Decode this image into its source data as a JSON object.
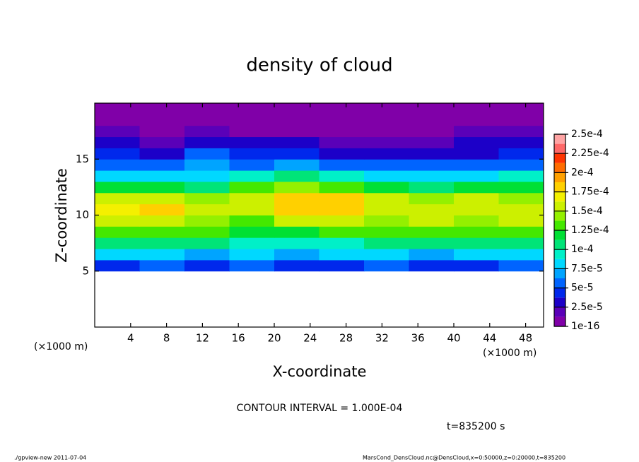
{
  "chart_data": {
    "type": "heatmap",
    "title": "density of cloud",
    "xlabel": "X-coordinate",
    "ylabel": "Z-coordinate",
    "x_unit": "(×1000 m)",
    "contour_interval": "CONTOUR INTERVAL = 1.000E-04",
    "time": "t=835200 s",
    "footer_left": "./gpview-new   2011-07-04",
    "footer_right": "MarsCond_DensCloud.nc@DensCloud,x=0:50000,z=0:20000,t=835200",
    "xlim": [
      0,
      50
    ],
    "ylim": [
      0,
      20
    ],
    "xticks": [
      4,
      8,
      12,
      16,
      20,
      24,
      28,
      32,
      36,
      40,
      44,
      48
    ],
    "yticks": [
      5,
      10,
      15
    ],
    "x": [
      2.5,
      7.5,
      12.5,
      17.5,
      22.5,
      27.5,
      32.5,
      37.5,
      42.5,
      47.5
    ],
    "z": [
      5.5,
      6.5,
      7.5,
      8.5,
      9.5,
      10.5,
      11.5,
      12.5,
      13.5,
      14.5,
      15.5,
      16.5,
      17.5,
      18.5,
      19.5
    ],
    "values": [
      [
        4e-05,
        5e-05,
        4.5e-05,
        5e-05,
        4e-05,
        4.5e-05,
        5e-05,
        4.5e-05,
        4e-05,
        5e-05
      ],
      [
        7.5e-05,
        8e-05,
        7e-05,
        7.5e-05,
        7e-05,
        7.5e-05,
        8e-05,
        7e-05,
        7.5e-05,
        8e-05
      ],
      [
        0.000105,
        0.00011,
        0.0001,
        9.5e-05,
        9e-05,
        9.5e-05,
        0.0001,
        0.000105,
        0.0001,
        0.000105
      ],
      [
        0.000135,
        0.00013,
        0.000125,
        0.000115,
        0.00012,
        0.000125,
        0.00013,
        0.000135,
        0.00013,
        0.000135
      ],
      [
        0.000155,
        0.00015,
        0.00014,
        0.000135,
        0.00015,
        0.000155,
        0.000145,
        0.00015,
        0.000145,
        0.00015
      ],
      [
        0.00017,
        0.000175,
        0.000155,
        0.00015,
        0.000175,
        0.000175,
        0.00016,
        0.000155,
        0.00016,
        0.000155
      ],
      [
        0.000155,
        0.00015,
        0.00014,
        0.000155,
        0.00018,
        0.000175,
        0.00015,
        0.000145,
        0.00015,
        0.000145
      ],
      [
        0.00012,
        0.000115,
        0.00011,
        0.000125,
        0.00014,
        0.000135,
        0.00012,
        0.00011,
        0.000115,
        0.00012
      ],
      [
        8.5e-05,
        8e-05,
        8e-05,
        9e-05,
        0.0001,
        9.5e-05,
        8.5e-05,
        8e-05,
        8.5e-05,
        9e-05
      ],
      [
        6e-05,
        5.5e-05,
        6.5e-05,
        6e-05,
        7e-05,
        6e-05,
        5e-05,
        5e-05,
        5.5e-05,
        6e-05
      ],
      [
        4e-05,
        3.5e-05,
        5e-05,
        4.5e-05,
        4e-05,
        3.5e-05,
        3e-05,
        3e-05,
        3.5e-05,
        4e-05
      ],
      [
        2.5e-05,
        2e-05,
        3e-05,
        2.5e-05,
        2.5e-05,
        2e-05,
        2e-05,
        2e-05,
        2.5e-05,
        2.5e-05
      ],
      [
        1.5e-05,
        1e-05,
        1.5e-05,
        1e-05,
        1e-05,
        1e-05,
        1e-05,
        1e-05,
        1.5e-05,
        1.5e-05
      ],
      [
        5e-06,
        5e-06,
        5e-06,
        5e-06,
        5e-06,
        5e-06,
        5e-06,
        5e-06,
        5e-06,
        5e-06
      ],
      [
        1e-05,
        1e-05,
        1e-05,
        1e-05,
        1e-05,
        1e-05,
        1e-05,
        1e-05,
        1e-05,
        1e-05
      ]
    ],
    "colorbar_ticks": [
      {
        "value": 1e-16,
        "label": "1e-16"
      },
      {
        "value": 2.5e-05,
        "label": "2.5e-5"
      },
      {
        "value": 5e-05,
        "label": "5e-5"
      },
      {
        "value": 7.5e-05,
        "label": "7.5e-5"
      },
      {
        "value": 0.0001,
        "label": "1e-4"
      },
      {
        "value": 0.000125,
        "label": "1.25e-4"
      },
      {
        "value": 0.00015,
        "label": "1.5e-4"
      },
      {
        "value": 0.000175,
        "label": "1.75e-4"
      },
      {
        "value": 0.0002,
        "label": "2e-4"
      },
      {
        "value": 0.000225,
        "label": "2.25e-4"
      },
      {
        "value": 0.00025,
        "label": "2.5e-4"
      }
    ],
    "colors": [
      "#8000a8",
      "#5a00b8",
      "#1c00c8",
      "#0028ec",
      "#0064ff",
      "#00a4ff",
      "#00d8ff",
      "#00f0c8",
      "#00e478",
      "#00e034",
      "#44e800",
      "#94f000",
      "#ccf000",
      "#f4f000",
      "#ffd000",
      "#ffa000",
      "#ff6c00",
      "#ff3400",
      "#ff6868",
      "#ffa4a4"
    ]
  }
}
